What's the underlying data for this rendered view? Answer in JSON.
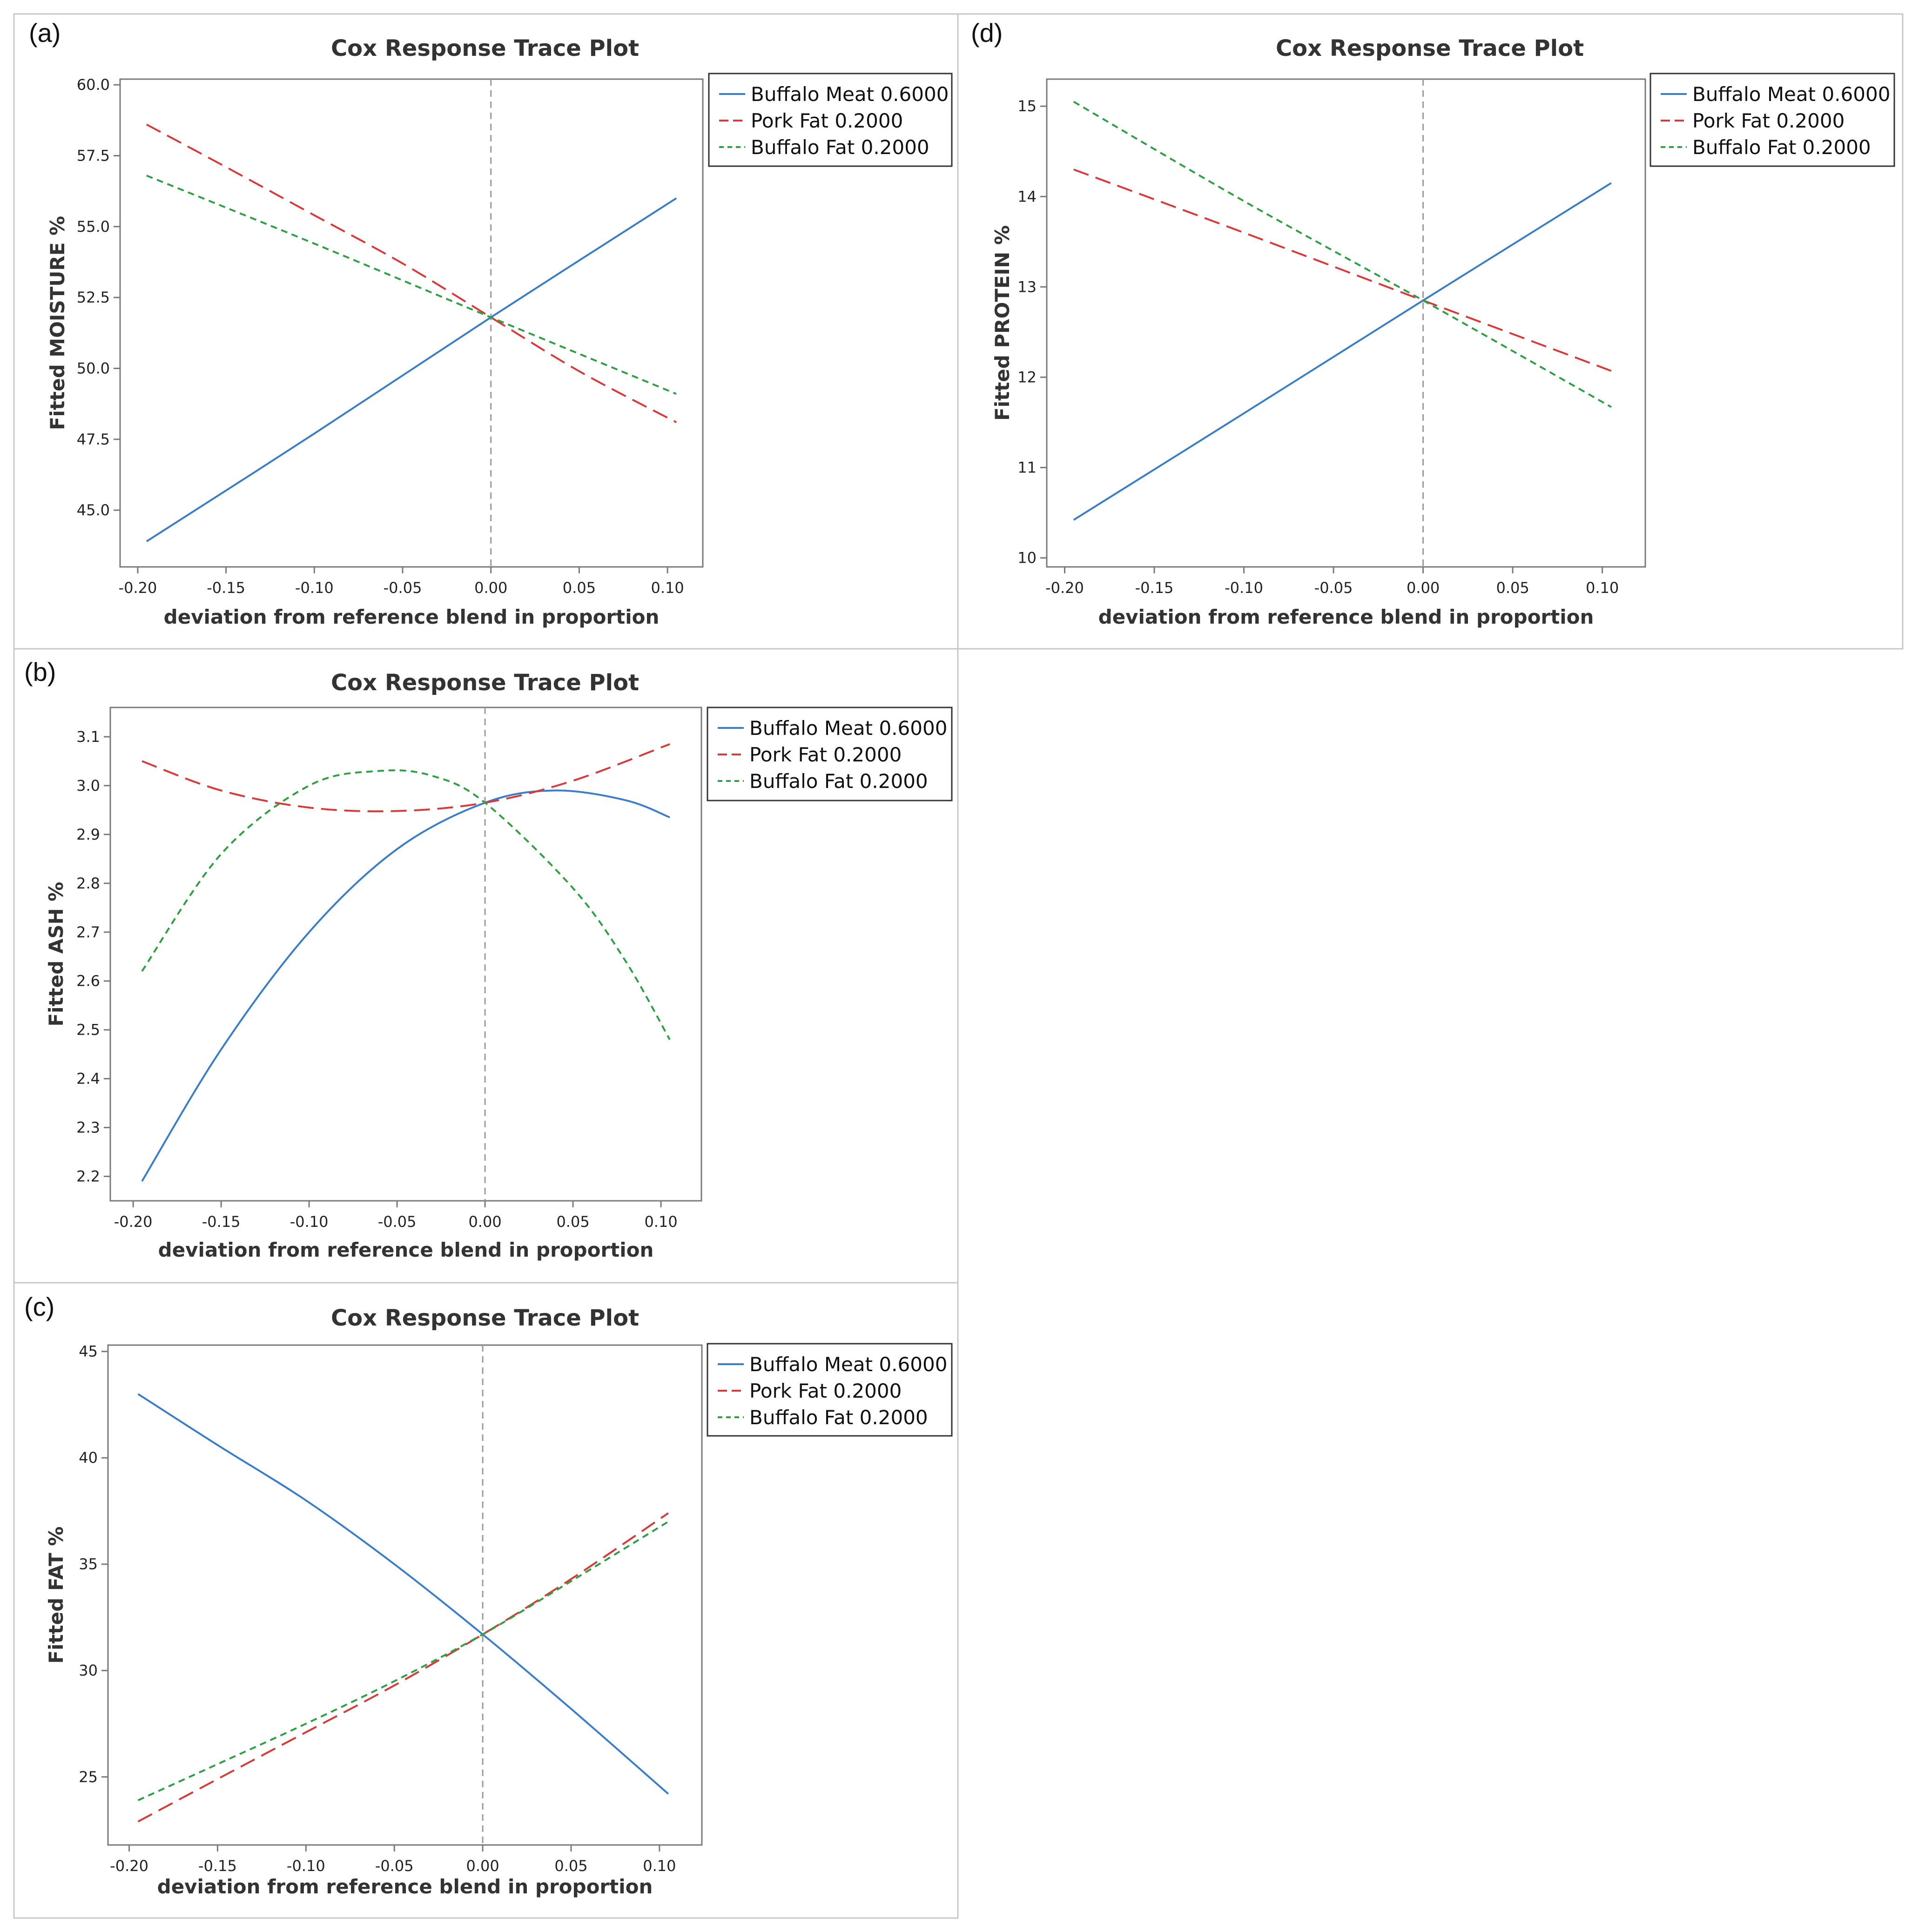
{
  "chart_data": [
    {
      "id": "a",
      "panel_label": "(a)",
      "type": "line",
      "title": "Cox Response Trace Plot",
      "xlabel": "deviation from reference blend in proportion",
      "ylabel": "Fitted MOISTURE %",
      "xlim": [
        -0.21,
        0.12
      ],
      "ylim": [
        43.0,
        60.2
      ],
      "xticks": [
        -0.2,
        -0.15,
        -0.1,
        -0.05,
        0.0,
        0.05,
        0.1
      ],
      "xtick_labels": [
        "-0.20",
        "-0.15",
        "-0.10",
        "-0.05",
        "0.00",
        "0.05",
        "0.10"
      ],
      "yticks": [
        45.0,
        47.5,
        50.0,
        52.5,
        55.0,
        57.5,
        60.0
      ],
      "ytick_labels": [
        "45.0",
        "47.5",
        "50.0",
        "52.5",
        "55.0",
        "57.5",
        "60.0"
      ],
      "reference_line_x": 0.0,
      "legend": "outside-right",
      "series": [
        {
          "name": "Buffalo Meat 0.6000",
          "color": "#3a7dc9",
          "dash": "solid",
          "x": [
            -0.195,
            -0.1,
            0.0,
            0.105
          ],
          "y": [
            43.9,
            47.7,
            51.8,
            56.0
          ]
        },
        {
          "name": "Pork Fat 0.2000",
          "color": "#d83a3a",
          "dash": "long",
          "x": [
            -0.195,
            -0.15,
            -0.1,
            -0.05,
            0.0,
            0.05,
            0.105
          ],
          "y": [
            58.6,
            57.1,
            55.4,
            53.7,
            51.8,
            49.9,
            48.1
          ]
        },
        {
          "name": "Buffalo Fat 0.2000",
          "color": "#2ea043",
          "dash": "short",
          "x": [
            -0.195,
            -0.1,
            0.0,
            0.105
          ],
          "y": [
            56.8,
            54.4,
            51.8,
            49.1
          ]
        }
      ]
    },
    {
      "id": "b",
      "panel_label": "(b)",
      "type": "line",
      "title": "Cox Response Trace Plot",
      "xlabel": "deviation from reference blend in proportion",
      "ylabel": "Fitted ASH %",
      "xlim": [
        -0.213,
        0.123
      ],
      "ylim": [
        2.15,
        3.16
      ],
      "xticks": [
        -0.2,
        -0.15,
        -0.1,
        -0.05,
        0.0,
        0.05,
        0.1
      ],
      "xtick_labels": [
        "-0.20",
        "-0.15",
        "-0.10",
        "-0.05",
        "0.00",
        "0.05",
        "0.10"
      ],
      "yticks": [
        2.2,
        2.3,
        2.4,
        2.5,
        2.6,
        2.7,
        2.8,
        2.9,
        3.0,
        3.1
      ],
      "ytick_labels": [
        "2.2",
        "2.3",
        "2.4",
        "2.5",
        "2.6",
        "2.7",
        "2.8",
        "2.9",
        "3.0",
        "3.1"
      ],
      "reference_line_x": 0.0,
      "legend": "outside-right",
      "series": [
        {
          "name": "Buffalo Meat 0.6000",
          "color": "#3a7dc9",
          "dash": "solid",
          "x": [
            -0.195,
            -0.15,
            -0.1,
            -0.05,
            0.0,
            0.04,
            0.08,
            0.105
          ],
          "y": [
            2.19,
            2.46,
            2.7,
            2.87,
            2.965,
            2.99,
            2.97,
            2.935
          ]
        },
        {
          "name": "Pork Fat 0.2000",
          "color": "#d83a3a",
          "dash": "long",
          "x": [
            -0.195,
            -0.15,
            -0.1,
            -0.05,
            0.0,
            0.05,
            0.105
          ],
          "y": [
            3.05,
            2.99,
            2.955,
            2.948,
            2.965,
            3.01,
            3.085
          ]
        },
        {
          "name": "Buffalo Fat 0.2000",
          "color": "#2ea043",
          "dash": "short",
          "x": [
            -0.195,
            -0.15,
            -0.1,
            -0.06,
            -0.03,
            0.0,
            0.05,
            0.08,
            0.105
          ],
          "y": [
            2.62,
            2.86,
            3.0,
            3.03,
            3.02,
            2.965,
            2.79,
            2.64,
            2.48
          ]
        }
      ]
    },
    {
      "id": "c",
      "panel_label": "(c)",
      "type": "line",
      "title": "Cox Response Trace Plot",
      "xlabel": "deviation from reference blend in proportion",
      "ylabel": "Fitted FAT %",
      "xlim": [
        -0.212,
        0.124
      ],
      "ylim": [
        21.8,
        45.3
      ],
      "xticks": [
        -0.2,
        -0.15,
        -0.1,
        -0.05,
        0.0,
        0.05,
        0.1
      ],
      "xtick_labels": [
        "-0.20",
        "-0.15",
        "-0.10",
        "-0.05",
        "0.00",
        "0.05",
        "0.10"
      ],
      "yticks": [
        25,
        30,
        35,
        40,
        45
      ],
      "ytick_labels": [
        "25",
        "30",
        "35",
        "40",
        "45"
      ],
      "reference_line_x": 0.0,
      "legend": "outside-right",
      "series": [
        {
          "name": "Buffalo Meat 0.6000",
          "color": "#3a7dc9",
          "dash": "solid",
          "x": [
            -0.195,
            -0.15,
            -0.1,
            -0.05,
            0.0,
            0.05,
            0.105
          ],
          "y": [
            43.0,
            40.6,
            38.0,
            35.0,
            31.7,
            28.2,
            24.2
          ]
        },
        {
          "name": "Pork Fat 0.2000",
          "color": "#d83a3a",
          "dash": "long",
          "x": [
            -0.195,
            -0.15,
            -0.1,
            -0.05,
            0.0,
            0.05,
            0.105
          ],
          "y": [
            22.9,
            24.9,
            27.1,
            29.3,
            31.7,
            34.3,
            37.4
          ]
        },
        {
          "name": "Buffalo Fat 0.2000",
          "color": "#2ea043",
          "dash": "short",
          "x": [
            -0.195,
            -0.15,
            -0.1,
            -0.05,
            0.0,
            0.05,
            0.105
          ],
          "y": [
            23.9,
            25.6,
            27.5,
            29.5,
            31.7,
            34.2,
            37.0
          ]
        }
      ]
    },
    {
      "id": "d",
      "panel_label": "(d)",
      "type": "line",
      "title": "Cox Response Trace Plot",
      "xlabel": "deviation from reference blend in proportion",
      "ylabel": "Fitted PROTEIN %",
      "xlim": [
        -0.21,
        0.124
      ],
      "ylim": [
        9.9,
        15.3
      ],
      "xticks": [
        -0.2,
        -0.15,
        -0.1,
        -0.05,
        0.0,
        0.05,
        0.1
      ],
      "xtick_labels": [
        "-0.20",
        "-0.15",
        "-0.10",
        "-0.05",
        "0.00",
        "0.05",
        "0.10"
      ],
      "yticks": [
        10,
        11,
        12,
        13,
        14,
        15
      ],
      "ytick_labels": [
        "10",
        "11",
        "12",
        "13",
        "14",
        "15"
      ],
      "reference_line_x": 0.0,
      "legend": "outside-right",
      "series": [
        {
          "name": "Buffalo Meat 0.6000",
          "color": "#3a7dc9",
          "dash": "solid",
          "x": [
            -0.195,
            -0.1,
            0.0,
            0.105
          ],
          "y": [
            10.42,
            11.6,
            12.85,
            14.15
          ]
        },
        {
          "name": "Pork Fat 0.2000",
          "color": "#d83a3a",
          "dash": "long",
          "x": [
            -0.195,
            -0.1,
            0.0,
            0.105
          ],
          "y": [
            14.3,
            13.6,
            12.85,
            12.07
          ]
        },
        {
          "name": "Buffalo Fat 0.2000",
          "color": "#2ea043",
          "dash": "short",
          "x": [
            -0.195,
            -0.1,
            0.0,
            0.105
          ],
          "y": [
            15.05,
            13.95,
            12.85,
            11.67
          ]
        }
      ]
    }
  ]
}
